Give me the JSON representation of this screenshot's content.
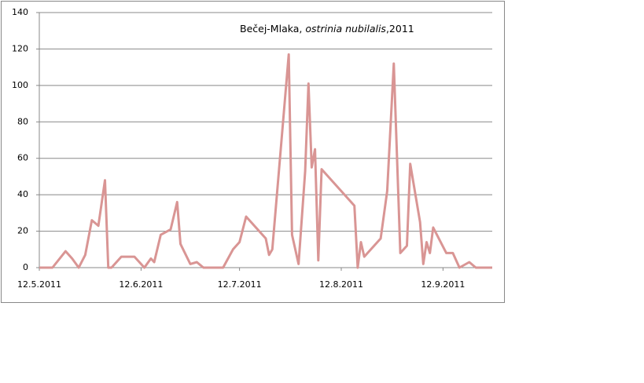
{
  "chart_data": {
    "type": "line",
    "title": [
      "Bečej-Mlaka,",
      "ostrinia nubilalis",
      ",2011"
    ],
    "x": [
      "2011-05-12",
      "2011-05-16",
      "2011-05-20",
      "2011-05-22",
      "2011-05-24",
      "2011-05-26",
      "2011-05-28",
      "2011-05-30",
      "2011-06-01",
      "2011-06-02",
      "2011-06-03",
      "2011-06-06",
      "2011-06-10",
      "2011-06-13",
      "2011-06-15",
      "2011-06-16",
      "2011-06-18",
      "2011-06-21",
      "2011-06-23",
      "2011-06-24",
      "2011-06-27",
      "2011-06-29",
      "2011-07-01",
      "2011-07-07",
      "2011-07-10",
      "2011-07-12",
      "2011-07-14",
      "2011-07-20",
      "2011-07-21",
      "2011-07-22",
      "2011-07-27",
      "2011-07-28",
      "2011-07-30",
      "2011-08-01",
      "2011-08-02",
      "2011-08-03",
      "2011-08-04",
      "2011-08-05",
      "2011-08-06",
      "2011-08-16",
      "2011-08-17",
      "2011-08-18",
      "2011-08-19",
      "2011-08-24",
      "2011-08-26",
      "2011-08-28",
      "2011-08-30",
      "2011-09-01",
      "2011-09-02",
      "2011-09-05",
      "2011-09-06",
      "2011-09-07",
      "2011-09-08",
      "2011-09-09",
      "2011-09-13",
      "2011-09-15",
      "2011-09-17",
      "2011-09-20",
      "2011-09-22",
      "2011-09-27"
    ],
    "series": [
      {
        "color": "#d99594",
        "values": [
          0,
          0,
          9,
          5,
          0,
          7,
          26,
          23,
          48,
          0,
          0,
          6,
          6,
          0,
          5,
          3,
          18,
          21,
          36,
          13,
          2,
          3,
          0,
          0,
          10,
          14,
          28,
          16,
          7,
          10,
          117,
          18,
          2,
          53,
          101,
          55,
          65,
          4,
          54,
          34,
          0,
          14,
          6,
          16,
          42,
          112,
          8,
          12,
          57,
          25,
          2,
          14,
          8,
          22,
          8,
          8,
          0,
          3,
          0,
          0
        ]
      }
    ],
    "xlim": [
      "2011-05-12",
      "2011-09-27"
    ],
    "xticks": [
      {
        "value": "2011-05-12",
        "label": "12.5.2011"
      },
      {
        "value": "2011-06-12",
        "label": "12.6.2011"
      },
      {
        "value": "2011-07-12",
        "label": "12.7.2011"
      },
      {
        "value": "2011-08-12",
        "label": "12.8.2011"
      },
      {
        "value": "2011-09-12",
        "label": "12.9.2011"
      }
    ],
    "ylim": [
      0,
      140
    ],
    "yticks": [
      0,
      20,
      40,
      60,
      80,
      100,
      120,
      140
    ],
    "grid": true
  }
}
